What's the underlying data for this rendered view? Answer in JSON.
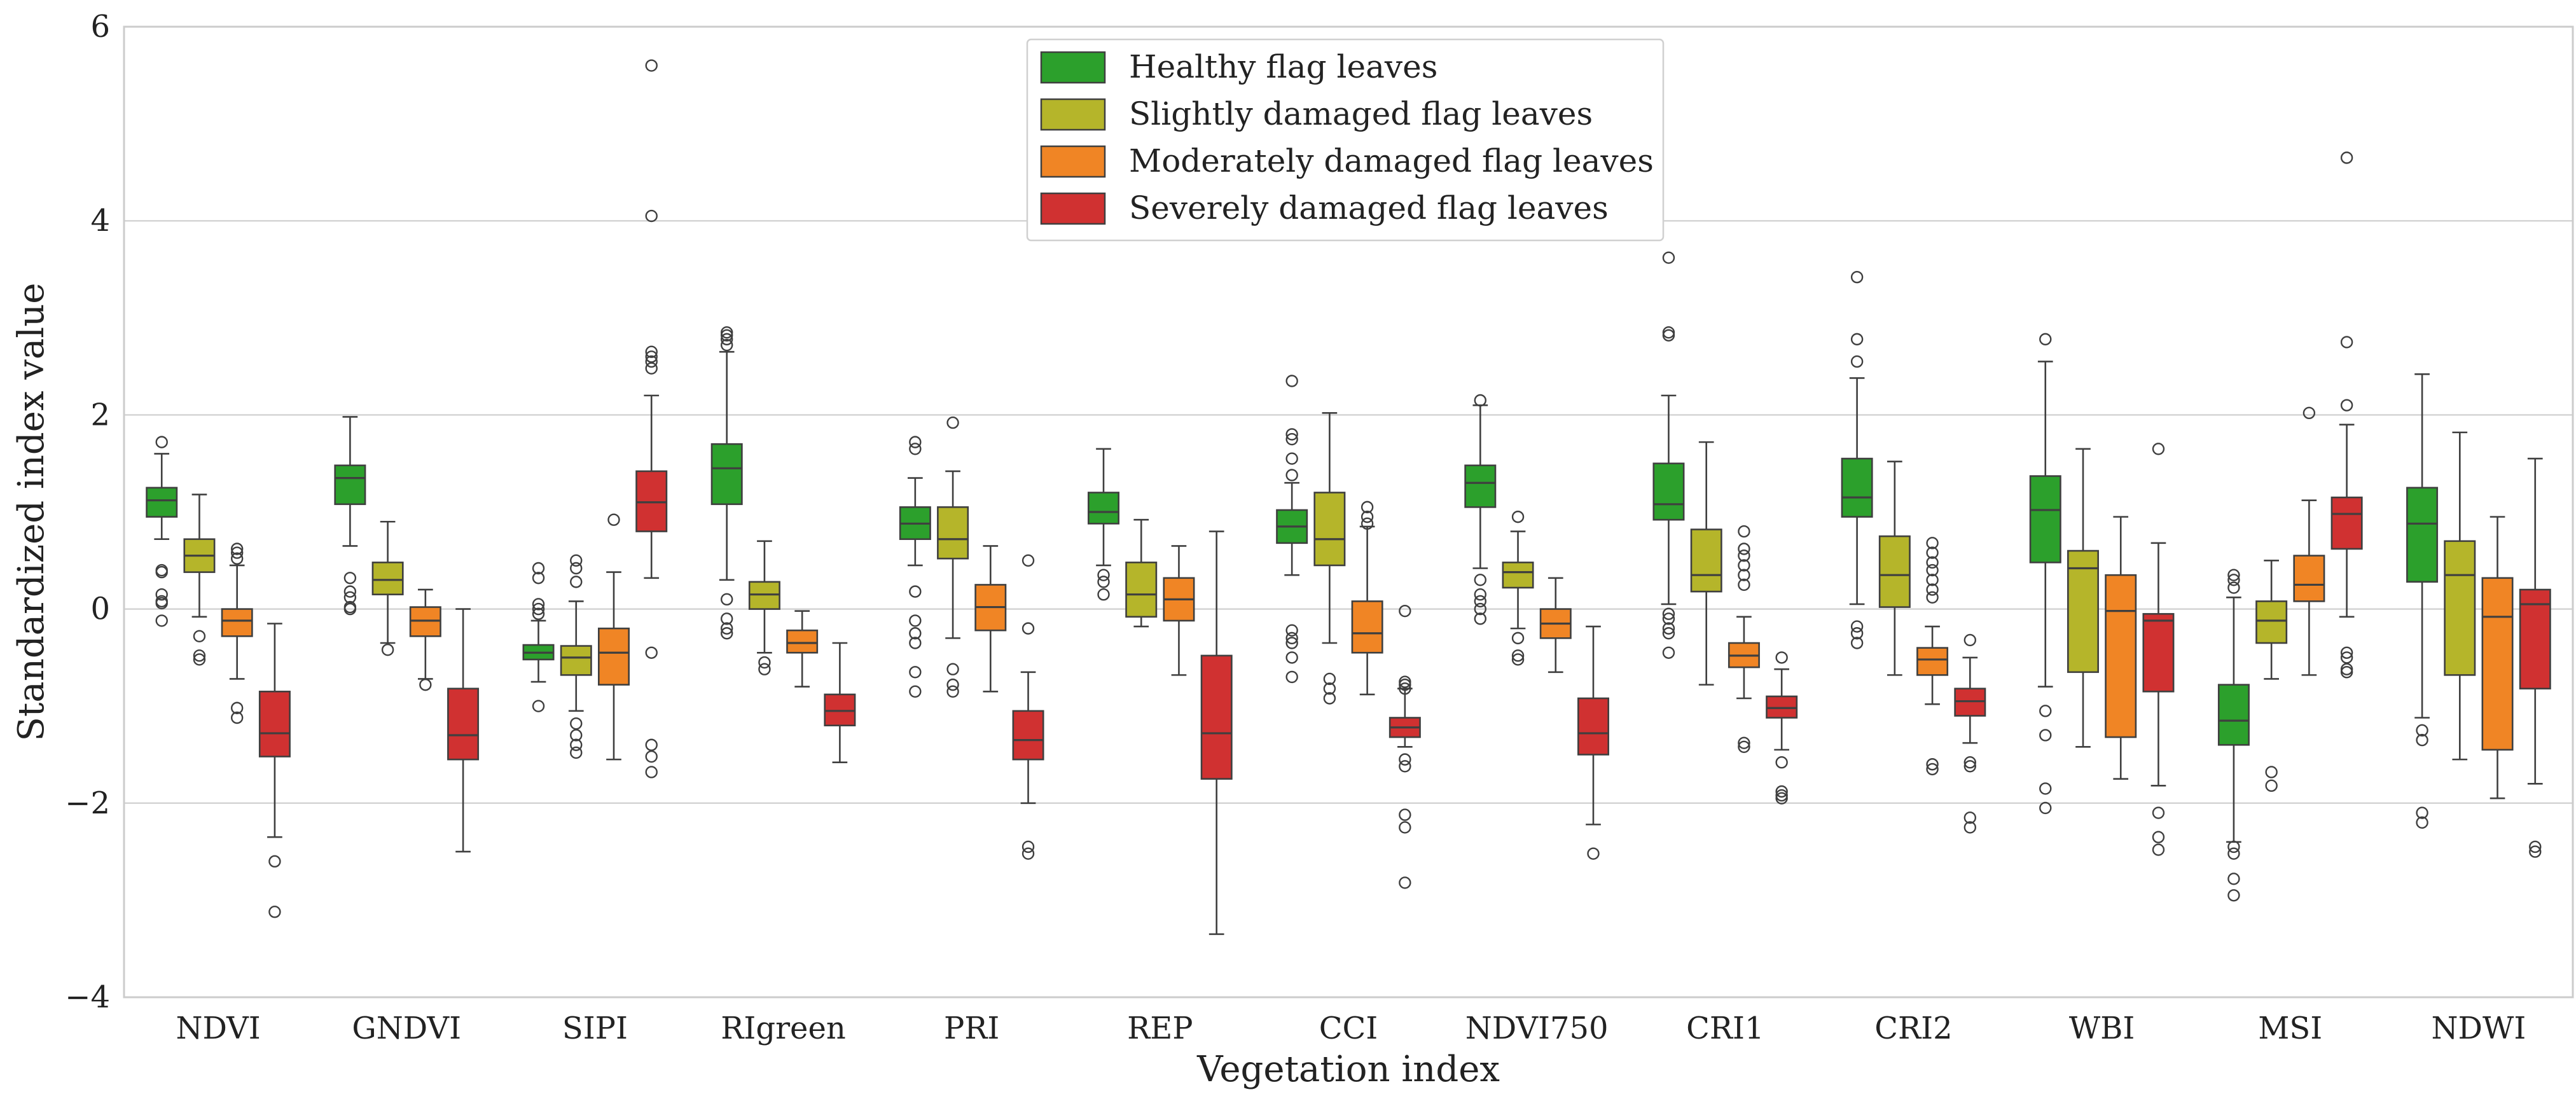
{
  "chart_data": {
    "type": "box",
    "xlabel": "Vegetation index",
    "ylabel": "Standardized index value",
    "ylim": [
      -4,
      6
    ],
    "yticks": [
      -4,
      -2,
      0,
      2,
      4,
      6
    ],
    "ytick_labels": [
      "−4",
      "−2",
      "0",
      "2",
      "4",
      "6"
    ],
    "grid": "horizontal",
    "legend_position": "top-center",
    "categories": [
      "NDVI",
      "GNDVI",
      "SIPI",
      "RIgreen",
      "PRI",
      "REP",
      "CCI",
      "NDVI750",
      "CRI1",
      "CRI2",
      "WBI",
      "MSI",
      "NDWI"
    ],
    "series": [
      {
        "name": "Healthy flag leaves",
        "color": "#2ca02c",
        "boxes": [
          {
            "whislo": 0.72,
            "q1": 0.95,
            "med": 1.12,
            "q3": 1.25,
            "whishi": 1.6,
            "fliers": [
              1.72,
              0.4,
              0.38,
              0.15,
              0.08,
              0.06,
              -0.12
            ]
          },
          {
            "whislo": 0.65,
            "q1": 1.08,
            "med": 1.35,
            "q3": 1.48,
            "whishi": 1.98,
            "fliers": [
              0.32,
              0.18,
              0.12,
              0.02,
              0.0
            ]
          },
          {
            "whislo": -0.75,
            "q1": -0.52,
            "med": -0.45,
            "q3": -0.37,
            "whishi": -0.12,
            "fliers": [
              0.42,
              0.32,
              0.05,
              0.0,
              -0.05,
              -1.0
            ]
          },
          {
            "whislo": 0.3,
            "q1": 1.08,
            "med": 1.45,
            "q3": 1.7,
            "whishi": 2.65,
            "fliers": [
              2.85,
              2.82,
              2.78,
              2.72,
              0.1,
              -0.1,
              -0.2,
              -0.25
            ]
          },
          {
            "whislo": 0.45,
            "q1": 0.72,
            "med": 0.88,
            "q3": 1.05,
            "whishi": 1.35,
            "fliers": [
              1.72,
              1.65,
              0.18,
              -0.12,
              -0.25,
              -0.35,
              -0.65,
              -0.85
            ]
          },
          {
            "whislo": 0.45,
            "q1": 0.88,
            "med": 1.0,
            "q3": 1.2,
            "whishi": 1.65,
            "fliers": [
              0.35,
              0.28,
              0.15
            ]
          },
          {
            "whislo": 0.35,
            "q1": 0.68,
            "med": 0.85,
            "q3": 1.02,
            "whishi": 1.3,
            "fliers": [
              2.35,
              1.8,
              1.75,
              1.55,
              1.38,
              -0.22,
              -0.3,
              -0.35,
              -0.5,
              -0.7
            ]
          },
          {
            "whislo": 0.42,
            "q1": 1.05,
            "med": 1.3,
            "q3": 1.48,
            "whishi": 2.1,
            "fliers": [
              2.15,
              0.3,
              0.15,
              0.08,
              0.0,
              -0.1
            ]
          },
          {
            "whislo": 0.05,
            "q1": 0.92,
            "med": 1.08,
            "q3": 1.5,
            "whishi": 2.2,
            "fliers": [
              3.62,
              2.85,
              2.82,
              -0.05,
              -0.1,
              -0.2,
              -0.25,
              -0.45
            ]
          },
          {
            "whislo": 0.05,
            "q1": 0.95,
            "med": 1.15,
            "q3": 1.55,
            "whishi": 2.38,
            "fliers": [
              3.42,
              2.78,
              2.55,
              -0.18,
              -0.25,
              -0.35
            ]
          },
          {
            "whislo": -0.8,
            "q1": 0.48,
            "med": 1.02,
            "q3": 1.37,
            "whishi": 2.55,
            "fliers": [
              2.78,
              -1.05,
              -1.3,
              -1.85,
              -2.05
            ]
          },
          {
            "whislo": -2.4,
            "q1": -1.4,
            "med": -1.15,
            "q3": -0.78,
            "whishi": 0.12,
            "fliers": [
              0.35,
              0.3,
              0.22,
              -2.45,
              -2.52,
              -2.78,
              -2.95
            ]
          },
          {
            "whislo": -1.12,
            "q1": 0.28,
            "med": 0.88,
            "q3": 1.25,
            "whishi": 2.42,
            "fliers": [
              -1.25,
              -1.35,
              -2.1,
              -2.2
            ]
          }
        ]
      },
      {
        "name": "Slightly damaged flag leaves",
        "color": "#b5b52a",
        "boxes": [
          {
            "whislo": -0.08,
            "q1": 0.38,
            "med": 0.55,
            "q3": 0.72,
            "whishi": 1.18,
            "fliers": [
              -0.28,
              -0.48,
              -0.52
            ]
          },
          {
            "whislo": -0.35,
            "q1": 0.15,
            "med": 0.3,
            "q3": 0.48,
            "whishi": 0.9,
            "fliers": [
              -0.42
            ]
          },
          {
            "whislo": -1.05,
            "q1": -0.68,
            "med": -0.5,
            "q3": -0.38,
            "whishi": 0.08,
            "fliers": [
              0.5,
              0.42,
              0.28,
              -1.18,
              -1.3,
              -1.4,
              -1.48
            ]
          },
          {
            "whislo": -0.45,
            "q1": 0.0,
            "med": 0.15,
            "q3": 0.28,
            "whishi": 0.7,
            "fliers": [
              -0.55,
              -0.62
            ]
          },
          {
            "whislo": -0.3,
            "q1": 0.52,
            "med": 0.72,
            "q3": 1.05,
            "whishi": 1.42,
            "fliers": [
              1.92,
              -0.62,
              -0.78,
              -0.85
            ]
          },
          {
            "whislo": -0.18,
            "q1": -0.08,
            "med": 0.15,
            "q3": 0.48,
            "whishi": 0.92,
            "fliers": []
          },
          {
            "whislo": -0.35,
            "q1": 0.45,
            "med": 0.72,
            "q3": 1.2,
            "whishi": 2.02,
            "fliers": [
              -0.72,
              -0.82,
              -0.92
            ]
          },
          {
            "whislo": -0.2,
            "q1": 0.22,
            "med": 0.38,
            "q3": 0.48,
            "whishi": 0.8,
            "fliers": [
              0.95,
              -0.3,
              -0.48,
              -0.52
            ]
          },
          {
            "whislo": -0.78,
            "q1": 0.18,
            "med": 0.35,
            "q3": 0.82,
            "whishi": 1.72,
            "fliers": []
          },
          {
            "whislo": -0.68,
            "q1": 0.02,
            "med": 0.35,
            "q3": 0.75,
            "whishi": 1.52,
            "fliers": []
          },
          {
            "whislo": -1.42,
            "q1": -0.65,
            "med": 0.42,
            "q3": 0.6,
            "whishi": 1.65,
            "fliers": []
          },
          {
            "whislo": -0.72,
            "q1": -0.35,
            "med": -0.12,
            "q3": 0.08,
            "whishi": 0.5,
            "fliers": [
              -1.68,
              -1.82
            ]
          },
          {
            "whislo": -1.55,
            "q1": -0.68,
            "med": 0.35,
            "q3": 0.7,
            "whishi": 1.82,
            "fliers": []
          }
        ]
      },
      {
        "name": "Moderately damaged flag leaves",
        "color": "#f08525",
        "boxes": [
          {
            "whislo": -0.72,
            "q1": -0.28,
            "med": -0.12,
            "q3": 0.0,
            "whishi": 0.45,
            "fliers": [
              0.62,
              0.58,
              0.52,
              -1.02,
              -1.12
            ]
          },
          {
            "whislo": -0.72,
            "q1": -0.28,
            "med": -0.12,
            "q3": 0.02,
            "whishi": 0.2,
            "fliers": [
              -0.78
            ]
          },
          {
            "whislo": -1.55,
            "q1": -0.78,
            "med": -0.45,
            "q3": -0.2,
            "whishi": 0.38,
            "fliers": [
              0.92
            ]
          },
          {
            "whislo": -0.8,
            "q1": -0.45,
            "med": -0.35,
            "q3": -0.22,
            "whishi": -0.02,
            "fliers": []
          },
          {
            "whislo": -0.85,
            "q1": -0.22,
            "med": 0.02,
            "q3": 0.25,
            "whishi": 0.65,
            "fliers": []
          },
          {
            "whislo": -0.68,
            "q1": -0.12,
            "med": 0.1,
            "q3": 0.32,
            "whishi": 0.65,
            "fliers": []
          },
          {
            "whislo": -0.88,
            "q1": -0.45,
            "med": -0.25,
            "q3": 0.08,
            "whishi": 0.85,
            "fliers": [
              1.05,
              0.95,
              0.88
            ]
          },
          {
            "whislo": -0.65,
            "q1": -0.3,
            "med": -0.15,
            "q3": 0.0,
            "whishi": 0.32,
            "fliers": []
          },
          {
            "whislo": -0.92,
            "q1": -0.6,
            "med": -0.48,
            "q3": -0.35,
            "whishi": -0.08,
            "fliers": [
              0.8,
              0.62,
              0.55,
              0.45,
              0.35,
              0.25,
              -1.38,
              -1.42
            ]
          },
          {
            "whislo": -0.98,
            "q1": -0.68,
            "med": -0.52,
            "q3": -0.4,
            "whishi": -0.18,
            "fliers": [
              0.68,
              0.58,
              0.48,
              0.4,
              0.3,
              0.2,
              0.12,
              -1.6,
              -1.65
            ]
          },
          {
            "whislo": -1.75,
            "q1": -1.32,
            "med": -0.02,
            "q3": 0.35,
            "whishi": 0.95,
            "fliers": []
          },
          {
            "whislo": -0.68,
            "q1": 0.08,
            "med": 0.25,
            "q3": 0.55,
            "whishi": 1.12,
            "fliers": [
              2.02
            ]
          },
          {
            "whislo": -1.95,
            "q1": -1.45,
            "med": -0.08,
            "q3": 0.32,
            "whishi": 0.95,
            "fliers": []
          }
        ]
      },
      {
        "name": "Severely damaged flag leaves",
        "color": "#d03131",
        "boxes": [
          {
            "whislo": -2.35,
            "q1": -1.52,
            "med": -1.28,
            "q3": -0.85,
            "whishi": -0.15,
            "fliers": [
              -2.6,
              -3.12
            ]
          },
          {
            "whislo": -2.5,
            "q1": -1.55,
            "med": -1.3,
            "q3": -0.82,
            "whishi": 0.0,
            "fliers": []
          },
          {
            "whislo": 0.32,
            "q1": 0.8,
            "med": 1.1,
            "q3": 1.42,
            "whishi": 2.2,
            "fliers": [
              5.6,
              4.05,
              2.65,
              2.6,
              2.55,
              2.48,
              -0.45,
              -1.4,
              -1.52,
              -1.68
            ]
          },
          {
            "whislo": -1.58,
            "q1": -1.2,
            "med": -1.05,
            "q3": -0.88,
            "whishi": -0.35,
            "fliers": []
          },
          {
            "whislo": -2.0,
            "q1": -1.55,
            "med": -1.35,
            "q3": -1.05,
            "whishi": -0.65,
            "fliers": [
              0.5,
              -0.2,
              -2.45,
              -2.52
            ]
          },
          {
            "whislo": -3.35,
            "q1": -1.75,
            "med": -1.28,
            "q3": -0.48,
            "whishi": 0.8,
            "fliers": []
          },
          {
            "whislo": -1.42,
            "q1": -1.32,
            "med": -1.22,
            "q3": -1.12,
            "whishi": -0.82,
            "fliers": [
              -0.02,
              -0.75,
              -0.78,
              -0.82,
              -1.55,
              -1.62,
              -2.12,
              -2.25,
              -2.82
            ]
          },
          {
            "whislo": -2.22,
            "q1": -1.5,
            "med": -1.28,
            "q3": -0.92,
            "whishi": -0.18,
            "fliers": [
              -2.52
            ]
          },
          {
            "whislo": -1.45,
            "q1": -1.12,
            "med": -1.02,
            "q3": -0.9,
            "whishi": -0.62,
            "fliers": [
              -0.5,
              -1.58,
              -1.88,
              -1.92,
              -1.95
            ]
          },
          {
            "whislo": -1.38,
            "q1": -1.1,
            "med": -0.95,
            "q3": -0.82,
            "whishi": -0.5,
            "fliers": [
              -0.32,
              -1.58,
              -1.62,
              -2.15,
              -2.25
            ]
          },
          {
            "whislo": -1.82,
            "q1": -0.85,
            "med": -0.12,
            "q3": -0.05,
            "whishi": 0.68,
            "fliers": [
              1.65,
              -2.1,
              -2.35,
              -2.48
            ]
          },
          {
            "whislo": -0.08,
            "q1": 0.62,
            "med": 0.98,
            "q3": 1.15,
            "whishi": 1.9,
            "fliers": [
              4.65,
              2.75,
              2.1,
              -0.45,
              -0.5,
              -0.62,
              -0.65
            ]
          },
          {
            "whislo": -1.8,
            "q1": -0.82,
            "med": 0.05,
            "q3": 0.2,
            "whishi": 1.55,
            "fliers": [
              -2.45,
              -2.5
            ]
          }
        ]
      }
    ]
  }
}
